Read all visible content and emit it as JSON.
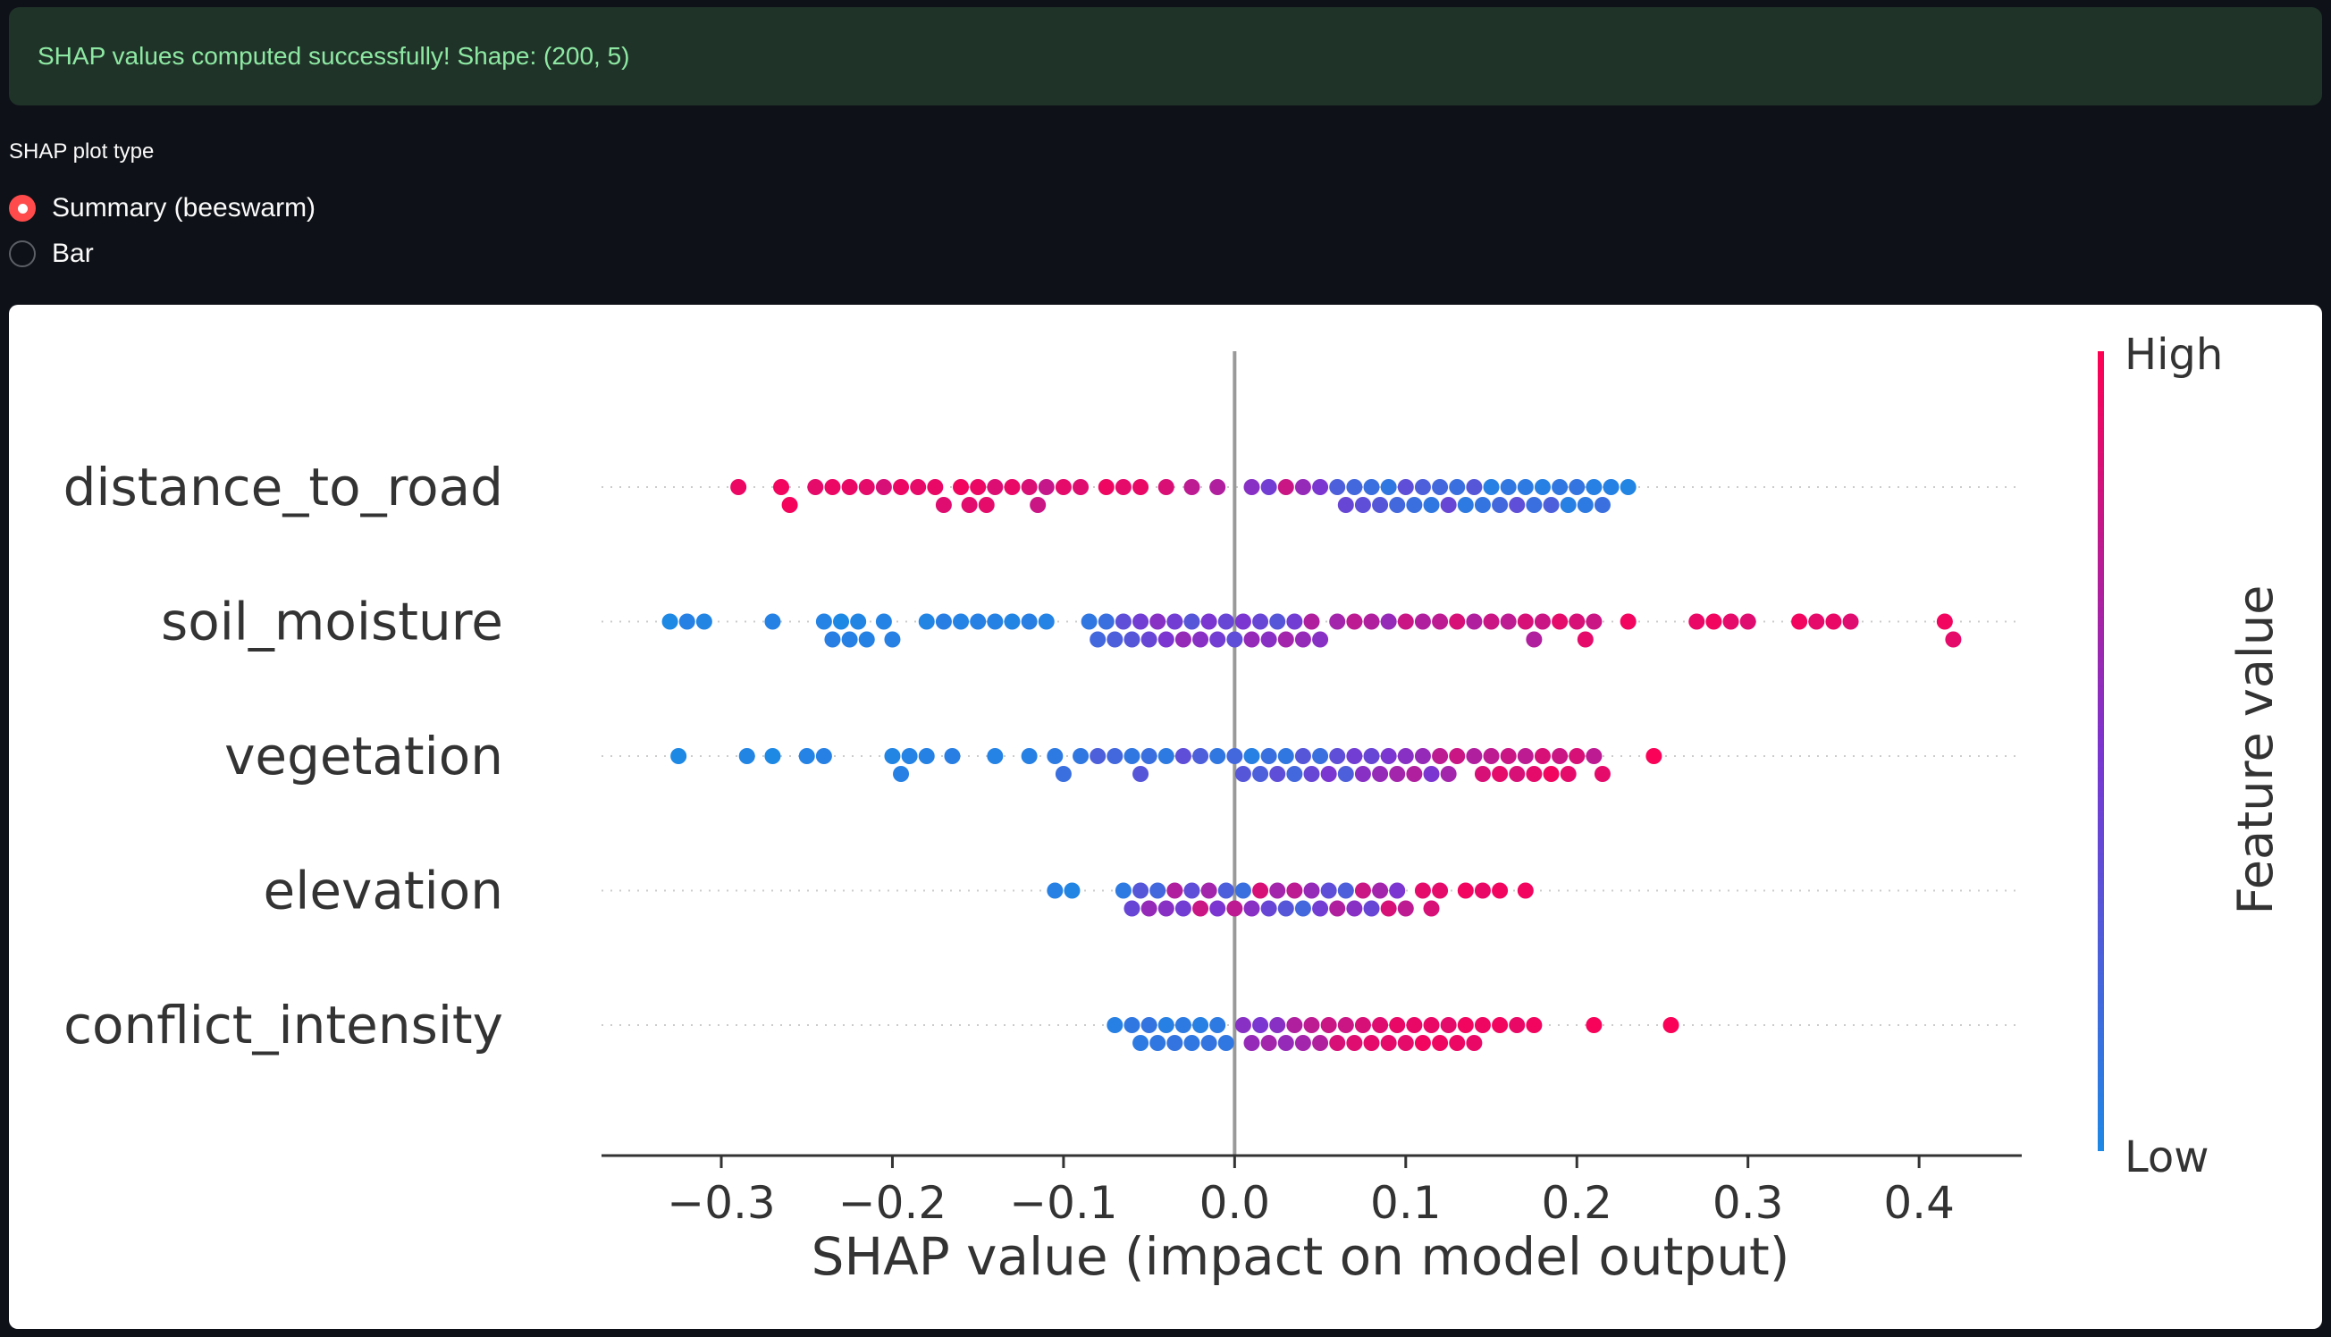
{
  "status": {
    "message": "SHAP values computed successfully! Shape: (200, 5)"
  },
  "plot_type": {
    "label": "SHAP plot type",
    "options": [
      "Summary (beeswarm)",
      "Bar"
    ],
    "selected": "Summary (beeswarm)"
  },
  "colors": {
    "success_bg": "#1f3328",
    "success_text": "#8ee8a3",
    "accent": "#ff4b4b",
    "low": "#1e88e5",
    "high": "#ff0052"
  },
  "chart_data": {
    "type": "scatter",
    "features": [
      "distance_to_road",
      "soil_moisture",
      "vegetation",
      "elevation",
      "conflict_intensity"
    ],
    "xlabel": "SHAP value (impact on model output)",
    "xticks": [
      -0.3,
      -0.2,
      -0.1,
      0.0,
      0.1,
      0.2,
      0.3,
      0.4
    ],
    "xtick_labels": [
      "−0.3",
      "−0.2",
      "−0.1",
      "0.0",
      "0.1",
      "0.2",
      "0.3",
      "0.4"
    ],
    "xlim": [
      -0.37,
      0.46
    ],
    "colorbar": {
      "label": "Feature value",
      "high_label": "High",
      "low_label": "Low"
    },
    "series": [
      {
        "name": "distance_to_road",
        "points": [
          [
            -0.29,
            0.93
          ],
          [
            -0.265,
            0.95
          ],
          [
            -0.26,
            0.96
          ],
          [
            -0.245,
            0.9
          ],
          [
            -0.235,
            0.93
          ],
          [
            -0.225,
            0.92
          ],
          [
            -0.215,
            0.9
          ],
          [
            -0.205,
            0.85
          ],
          [
            -0.195,
            0.93
          ],
          [
            -0.185,
            0.91
          ],
          [
            -0.175,
            0.92
          ],
          [
            -0.17,
            0.88
          ],
          [
            -0.16,
            0.95
          ],
          [
            -0.155,
            0.89
          ],
          [
            -0.15,
            0.93
          ],
          [
            -0.145,
            0.9
          ],
          [
            -0.14,
            0.87
          ],
          [
            -0.13,
            0.92
          ],
          [
            -0.12,
            0.86
          ],
          [
            -0.115,
            0.8
          ],
          [
            -0.11,
            0.78
          ],
          [
            -0.1,
            0.9
          ],
          [
            -0.09,
            0.88
          ],
          [
            -0.075,
            0.94
          ],
          [
            -0.065,
            0.9
          ],
          [
            -0.055,
            0.92
          ],
          [
            -0.04,
            0.86
          ],
          [
            -0.025,
            0.75
          ],
          [
            -0.01,
            0.7
          ],
          [
            0.01,
            0.55
          ],
          [
            0.02,
            0.45
          ],
          [
            0.03,
            0.8
          ],
          [
            0.04,
            0.6
          ],
          [
            0.05,
            0.5
          ],
          [
            0.06,
            0.25
          ],
          [
            0.065,
            0.4
          ],
          [
            0.07,
            0.2
          ],
          [
            0.075,
            0.35
          ],
          [
            0.08,
            0.15
          ],
          [
            0.085,
            0.3
          ],
          [
            0.09,
            0.1
          ],
          [
            0.095,
            0.2
          ],
          [
            0.1,
            0.35
          ],
          [
            0.105,
            0.15
          ],
          [
            0.11,
            0.25
          ],
          [
            0.115,
            0.1
          ],
          [
            0.12,
            0.2
          ],
          [
            0.125,
            0.4
          ],
          [
            0.13,
            0.15
          ],
          [
            0.135,
            0.08
          ],
          [
            0.14,
            0.3
          ],
          [
            0.145,
            0.12
          ],
          [
            0.15,
            0.05
          ],
          [
            0.155,
            0.2
          ],
          [
            0.16,
            0.1
          ],
          [
            0.165,
            0.35
          ],
          [
            0.17,
            0.08
          ],
          [
            0.175,
            0.15
          ],
          [
            0.18,
            0.05
          ],
          [
            0.185,
            0.25
          ],
          [
            0.19,
            0.1
          ],
          [
            0.195,
            0.05
          ],
          [
            0.2,
            0.12
          ],
          [
            0.205,
            0.08
          ],
          [
            0.21,
            0.05
          ],
          [
            0.215,
            0.15
          ],
          [
            0.22,
            0.04
          ],
          [
            0.23,
            0.02
          ]
        ]
      },
      {
        "name": "soil_moisture",
        "points": [
          [
            -0.33,
            0.0
          ],
          [
            -0.32,
            0.05
          ],
          [
            -0.31,
            0.02
          ],
          [
            -0.27,
            0.04
          ],
          [
            -0.24,
            0.03
          ],
          [
            -0.235,
            0.06
          ],
          [
            -0.23,
            0.0
          ],
          [
            -0.225,
            0.05
          ],
          [
            -0.22,
            0.02
          ],
          [
            -0.215,
            0.04
          ],
          [
            -0.205,
            0.03
          ],
          [
            -0.2,
            0.05
          ],
          [
            -0.18,
            0.02
          ],
          [
            -0.17,
            0.06
          ],
          [
            -0.16,
            0.03
          ],
          [
            -0.15,
            0.05
          ],
          [
            -0.14,
            0.04
          ],
          [
            -0.13,
            0.02
          ],
          [
            -0.12,
            0.06
          ],
          [
            -0.11,
            0.03
          ],
          [
            -0.085,
            0.1
          ],
          [
            -0.08,
            0.2
          ],
          [
            -0.075,
            0.15
          ],
          [
            -0.07,
            0.25
          ],
          [
            -0.065,
            0.35
          ],
          [
            -0.06,
            0.3
          ],
          [
            -0.055,
            0.45
          ],
          [
            -0.05,
            0.4
          ],
          [
            -0.045,
            0.55
          ],
          [
            -0.04,
            0.5
          ],
          [
            -0.035,
            0.45
          ],
          [
            -0.03,
            0.6
          ],
          [
            -0.025,
            0.3
          ],
          [
            -0.02,
            0.55
          ],
          [
            -0.015,
            0.5
          ],
          [
            -0.01,
            0.45
          ],
          [
            -0.005,
            0.4
          ],
          [
            0.0,
            0.35
          ],
          [
            0.005,
            0.5
          ],
          [
            0.01,
            0.6
          ],
          [
            0.015,
            0.4
          ],
          [
            0.02,
            0.55
          ],
          [
            0.025,
            0.3
          ],
          [
            0.03,
            0.65
          ],
          [
            0.035,
            0.45
          ],
          [
            0.04,
            0.6
          ],
          [
            0.045,
            0.7
          ],
          [
            0.05,
            0.55
          ],
          [
            0.06,
            0.65
          ],
          [
            0.07,
            0.75
          ],
          [
            0.08,
            0.7
          ],
          [
            0.09,
            0.6
          ],
          [
            0.1,
            0.8
          ],
          [
            0.11,
            0.7
          ],
          [
            0.12,
            0.75
          ],
          [
            0.13,
            0.85
          ],
          [
            0.14,
            0.7
          ],
          [
            0.15,
            0.8
          ],
          [
            0.16,
            0.75
          ],
          [
            0.17,
            0.85
          ],
          [
            0.175,
            0.7
          ],
          [
            0.18,
            0.8
          ],
          [
            0.19,
            0.9
          ],
          [
            0.2,
            0.85
          ],
          [
            0.205,
            0.9
          ],
          [
            0.21,
            0.8
          ],
          [
            0.23,
            0.95
          ],
          [
            0.27,
            0.92
          ],
          [
            0.28,
            0.95
          ],
          [
            0.29,
            0.9
          ],
          [
            0.3,
            0.88
          ],
          [
            0.33,
            0.95
          ],
          [
            0.34,
            0.9
          ],
          [
            0.35,
            0.92
          ],
          [
            0.36,
            0.88
          ],
          [
            0.415,
            0.95
          ],
          [
            0.42,
            0.9
          ]
        ]
      },
      {
        "name": "vegetation",
        "points": [
          [
            -0.325,
            0.0
          ],
          [
            -0.285,
            0.02
          ],
          [
            -0.27,
            0.0
          ],
          [
            -0.25,
            0.03
          ],
          [
            -0.24,
            0.05
          ],
          [
            -0.2,
            0.02
          ],
          [
            -0.195,
            0.05
          ],
          [
            -0.19,
            0.03
          ],
          [
            -0.18,
            0.04
          ],
          [
            -0.165,
            0.06
          ],
          [
            -0.14,
            0.03
          ],
          [
            -0.12,
            0.05
          ],
          [
            -0.105,
            0.08
          ],
          [
            -0.1,
            0.15
          ],
          [
            -0.09,
            0.1
          ],
          [
            -0.08,
            0.25
          ],
          [
            -0.07,
            0.2
          ],
          [
            -0.06,
            0.1
          ],
          [
            -0.055,
            0.3
          ],
          [
            -0.05,
            0.15
          ],
          [
            -0.04,
            0.08
          ],
          [
            -0.03,
            0.35
          ],
          [
            -0.02,
            0.25
          ],
          [
            -0.01,
            0.1
          ],
          [
            0.0,
            0.2
          ],
          [
            0.005,
            0.3
          ],
          [
            0.01,
            0.05
          ],
          [
            0.015,
            0.25
          ],
          [
            0.02,
            0.15
          ],
          [
            0.025,
            0.35
          ],
          [
            0.03,
            0.1
          ],
          [
            0.035,
            0.2
          ],
          [
            0.04,
            0.3
          ],
          [
            0.045,
            0.4
          ],
          [
            0.05,
            0.15
          ],
          [
            0.055,
            0.5
          ],
          [
            0.06,
            0.35
          ],
          [
            0.065,
            0.25
          ],
          [
            0.07,
            0.45
          ],
          [
            0.075,
            0.55
          ],
          [
            0.08,
            0.4
          ],
          [
            0.085,
            0.6
          ],
          [
            0.09,
            0.5
          ],
          [
            0.095,
            0.65
          ],
          [
            0.1,
            0.55
          ],
          [
            0.105,
            0.7
          ],
          [
            0.11,
            0.6
          ],
          [
            0.115,
            0.5
          ],
          [
            0.12,
            0.75
          ],
          [
            0.125,
            0.65
          ],
          [
            0.13,
            0.8
          ],
          [
            0.14,
            0.7
          ],
          [
            0.145,
            0.85
          ],
          [
            0.15,
            0.75
          ],
          [
            0.155,
            0.9
          ],
          [
            0.16,
            0.8
          ],
          [
            0.165,
            0.85
          ],
          [
            0.17,
            0.75
          ],
          [
            0.175,
            0.9
          ],
          [
            0.18,
            0.85
          ],
          [
            0.185,
            0.95
          ],
          [
            0.19,
            0.8
          ],
          [
            0.195,
            0.9
          ],
          [
            0.2,
            0.85
          ],
          [
            0.21,
            0.75
          ],
          [
            0.215,
            0.9
          ],
          [
            0.245,
            0.98
          ]
        ]
      },
      {
        "name": "elevation",
        "points": [
          [
            -0.105,
            0.05
          ],
          [
            -0.095,
            0.02
          ],
          [
            -0.065,
            0.08
          ],
          [
            -0.06,
            0.4
          ],
          [
            -0.055,
            0.3
          ],
          [
            -0.05,
            0.6
          ],
          [
            -0.045,
            0.2
          ],
          [
            -0.04,
            0.55
          ],
          [
            -0.035,
            0.7
          ],
          [
            -0.03,
            0.45
          ],
          [
            -0.025,
            0.35
          ],
          [
            -0.02,
            0.8
          ],
          [
            -0.015,
            0.65
          ],
          [
            -0.01,
            0.5
          ],
          [
            -0.005,
            0.25
          ],
          [
            0.0,
            0.75
          ],
          [
            0.005,
            0.15
          ],
          [
            0.01,
            0.55
          ],
          [
            0.015,
            0.85
          ],
          [
            0.02,
            0.4
          ],
          [
            0.025,
            0.65
          ],
          [
            0.03,
            0.3
          ],
          [
            0.035,
            0.75
          ],
          [
            0.04,
            0.2
          ],
          [
            0.045,
            0.6
          ],
          [
            0.05,
            0.45
          ],
          [
            0.055,
            0.35
          ],
          [
            0.06,
            0.7
          ],
          [
            0.065,
            0.25
          ],
          [
            0.07,
            0.55
          ],
          [
            0.075,
            0.8
          ],
          [
            0.08,
            0.4
          ],
          [
            0.085,
            0.65
          ],
          [
            0.09,
            0.85
          ],
          [
            0.095,
            0.5
          ],
          [
            0.1,
            0.75
          ],
          [
            0.11,
            0.9
          ],
          [
            0.115,
            0.85
          ],
          [
            0.12,
            0.9
          ],
          [
            0.135,
            0.95
          ],
          [
            0.145,
            0.92
          ],
          [
            0.155,
            0.95
          ],
          [
            0.17,
            0.95
          ]
        ]
      },
      {
        "name": "conflict_intensity",
        "points": [
          [
            -0.07,
            0.05
          ],
          [
            -0.06,
            0.1
          ],
          [
            -0.055,
            0.08
          ],
          [
            -0.05,
            0.12
          ],
          [
            -0.045,
            0.1
          ],
          [
            -0.04,
            0.05
          ],
          [
            -0.035,
            0.12
          ],
          [
            -0.03,
            0.08
          ],
          [
            -0.025,
            0.1
          ],
          [
            -0.02,
            0.05
          ],
          [
            -0.015,
            0.12
          ],
          [
            -0.01,
            0.08
          ],
          [
            -0.005,
            0.1
          ],
          [
            0.005,
            0.55
          ],
          [
            0.01,
            0.6
          ],
          [
            0.015,
            0.5
          ],
          [
            0.02,
            0.65
          ],
          [
            0.025,
            0.55
          ],
          [
            0.03,
            0.6
          ],
          [
            0.035,
            0.7
          ],
          [
            0.04,
            0.65
          ],
          [
            0.045,
            0.75
          ],
          [
            0.05,
            0.7
          ],
          [
            0.055,
            0.8
          ],
          [
            0.06,
            0.85
          ],
          [
            0.065,
            0.8
          ],
          [
            0.07,
            0.88
          ],
          [
            0.075,
            0.85
          ],
          [
            0.08,
            0.9
          ],
          [
            0.085,
            0.88
          ],
          [
            0.09,
            0.9
          ],
          [
            0.095,
            0.92
          ],
          [
            0.1,
            0.9
          ],
          [
            0.105,
            0.92
          ],
          [
            0.11,
            0.95
          ],
          [
            0.115,
            0.92
          ],
          [
            0.12,
            0.94
          ],
          [
            0.125,
            0.9
          ],
          [
            0.13,
            0.93
          ],
          [
            0.135,
            0.95
          ],
          [
            0.14,
            0.92
          ],
          [
            0.145,
            0.94
          ],
          [
            0.155,
            0.95
          ],
          [
            0.165,
            0.92
          ],
          [
            0.175,
            0.95
          ],
          [
            0.21,
            0.97
          ],
          [
            0.255,
            0.98
          ]
        ]
      }
    ]
  }
}
